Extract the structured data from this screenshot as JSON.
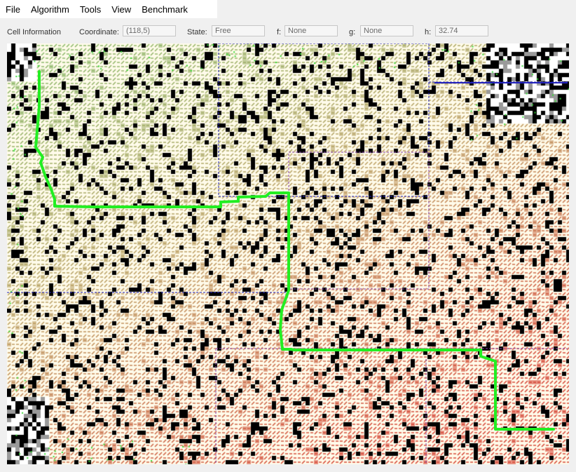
{
  "menu": {
    "items": [
      "File",
      "Algorithm",
      "Tools",
      "View",
      "Benchmark"
    ]
  },
  "cell_info": {
    "section_label": "Cell Information",
    "coordinate_label": "Coordinate:",
    "coordinate_value": "(118,5)",
    "state_label": "State:",
    "state_value": "Free",
    "f_label": "f:",
    "f_value": "None",
    "g_label": "g:",
    "g_value": "None",
    "h_label": "h:",
    "h_value": "32.74"
  },
  "colors": {
    "path": "#22ee22",
    "obstacle": "#000000",
    "frontier": "#33dd33",
    "start_region": "#7db863",
    "mid_region": "#b89a5a",
    "goal_region": "#d43b2a",
    "region_border_blue": "#2222bb",
    "region_border_purple": "#8844aa"
  },
  "icons": {
    "path_line": "path-line",
    "search_grid": "search-grid"
  }
}
